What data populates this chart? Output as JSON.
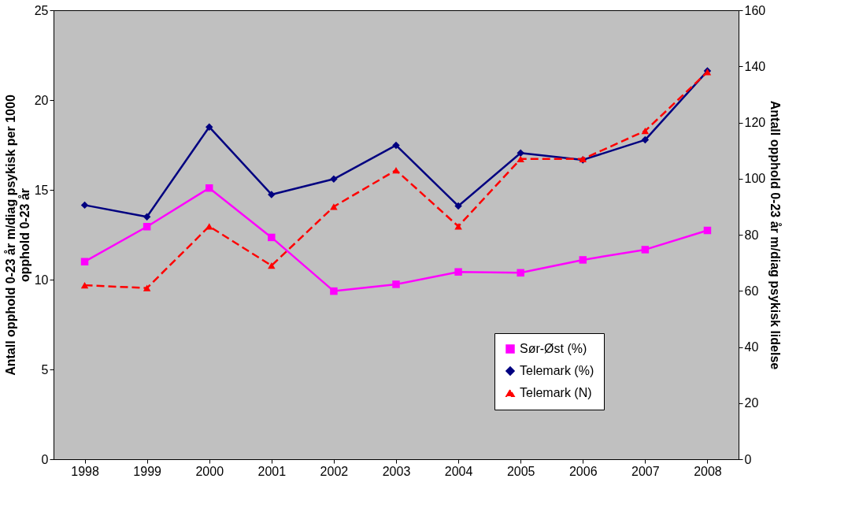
{
  "chart_data": {
    "type": "line",
    "categories": [
      "1998",
      "1999",
      "2000",
      "2001",
      "2002",
      "2003",
      "2004",
      "2005",
      "2006",
      "2007",
      "2008"
    ],
    "series": [
      {
        "name": "Sør-Øst (%)",
        "color": "#ff00ff",
        "marker": "square",
        "line_style": "solid",
        "values": [
          11.0,
          12.95,
          15.1,
          12.35,
          9.36,
          9.74,
          10.43,
          10.38,
          11.1,
          11.67,
          12.74
        ]
      },
      {
        "name": "Telemark (%)",
        "color": "#000080",
        "marker": "diamond",
        "line_style": "solid",
        "values": [
          14.15,
          13.5,
          18.5,
          14.74,
          15.6,
          17.48,
          14.1,
          17.05,
          16.67,
          17.78,
          21.62
        ]
      },
      {
        "name": "Telemark (N)",
        "color": "#ff0000",
        "marker": "triangle",
        "line_style": "dashed",
        "axis": "y2",
        "values": [
          62,
          61,
          83,
          69,
          90,
          103,
          83,
          107,
          107,
          117,
          138
        ]
      }
    ],
    "ylabel": "Antall opphold 0-23 år m/diag psykisk per 1000 opphold 0-23 år",
    "y2label": "Antall opphold 0-23 år m/diag psykisk lidelse",
    "ylim": [
      0,
      25
    ],
    "yticks": [
      0,
      5,
      10,
      15,
      20,
      25
    ],
    "y2lim": [
      0,
      160
    ],
    "y2ticks": [
      0,
      20,
      40,
      60,
      80,
      100,
      120,
      140,
      160
    ],
    "grid": false,
    "legend": "bottom right"
  }
}
